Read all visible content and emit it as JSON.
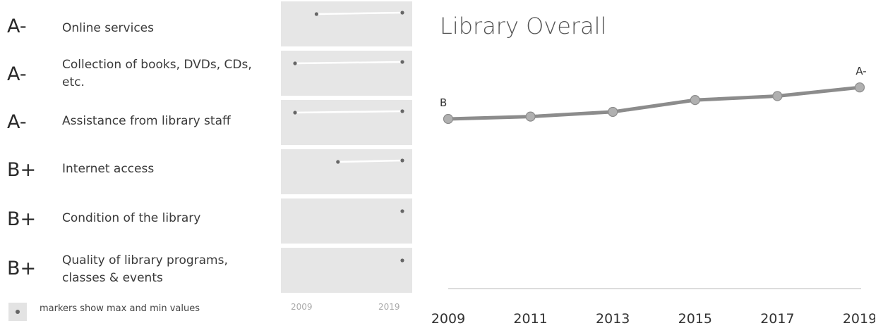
{
  "ratings": [
    {
      "grade": "A-",
      "label": "Online services",
      "first_year": 2011,
      "last_year": 2019
    },
    {
      "grade": "A-",
      "label": "Collection of books, DVDs, CDs, etc.",
      "first_year": 2009,
      "last_year": 2019
    },
    {
      "grade": "A-",
      "label": "Assistance from library staff",
      "first_year": 2009,
      "last_year": 2019
    },
    {
      "grade": "B+",
      "label": "Internet access",
      "first_year": 2013,
      "last_year": 2019
    },
    {
      "grade": "B+",
      "label": "Condition of the library",
      "first_year": 2019,
      "last_year": 2019
    },
    {
      "grade": "B+",
      "label": "Quality of library programs, classes & events",
      "first_year": 2019,
      "last_year": 2019
    }
  ],
  "legend": {
    "text": "markers show max and min values"
  },
  "sparkline_axis": {
    "start": "2009",
    "end": "2019"
  },
  "chart_data": {
    "type": "line",
    "title": "Library Overall",
    "x": [
      2009,
      2011,
      2013,
      2015,
      2017,
      2019
    ],
    "series": [
      {
        "values": [
          0.0,
          0.06,
          0.18,
          0.48,
          0.58,
          0.8
        ]
      }
    ],
    "start_label": "B",
    "end_label": "A-",
    "tick_labels": [
      "2009",
      "2011",
      "2013",
      "2015",
      "2017",
      "2019"
    ],
    "ylim": [
      0,
      1
    ],
    "colors": {
      "line": "#8c8c8c",
      "marker": "#b0b0b0",
      "axis": "#d0d0d0"
    }
  }
}
